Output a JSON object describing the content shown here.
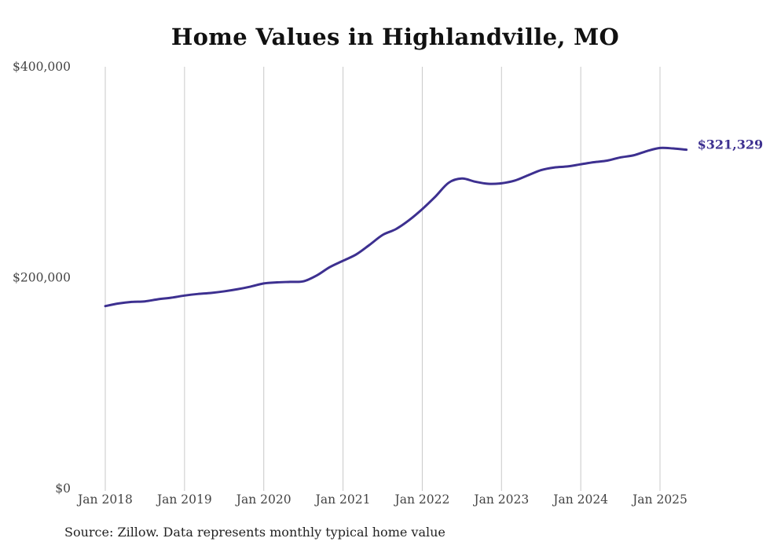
{
  "chart_data": {
    "type": "line",
    "title": "Home Values in Highlandville, MO",
    "xlabel": "",
    "ylabel": "",
    "ylim": [
      0,
      400000
    ],
    "xlim": [
      "2018-01",
      "2025-05"
    ],
    "y_ticks": [
      {
        "value": 0,
        "label": "$0"
      },
      {
        "value": 200000,
        "label": "$200,000"
      },
      {
        "value": 400000,
        "label": "$400,000"
      }
    ],
    "x_ticks": [
      {
        "date": "2018-01",
        "label": "Jan 2018"
      },
      {
        "date": "2019-01",
        "label": "Jan 2019"
      },
      {
        "date": "2020-01",
        "label": "Jan 2020"
      },
      {
        "date": "2021-01",
        "label": "Jan 2021"
      },
      {
        "date": "2022-01",
        "label": "Jan 2022"
      },
      {
        "date": "2023-01",
        "label": "Jan 2023"
      },
      {
        "date": "2024-01",
        "label": "Jan 2024"
      },
      {
        "date": "2025-01",
        "label": "Jan 2025"
      }
    ],
    "grid": {
      "vertical": true,
      "horizontal": false
    },
    "colors": {
      "line": "#3d3090",
      "grid": "#c8c8c8",
      "text": "#444444"
    },
    "end_label": "$321,329",
    "series": [
      {
        "x": [
          "2018-01",
          "2018-03",
          "2018-05",
          "2018-07",
          "2018-09",
          "2018-11",
          "2019-01",
          "2019-03",
          "2019-05",
          "2019-07",
          "2019-09",
          "2019-11",
          "2020-01",
          "2020-03",
          "2020-05",
          "2020-07",
          "2020-09",
          "2020-11",
          "2021-01",
          "2021-03",
          "2021-05",
          "2021-07",
          "2021-09",
          "2021-11",
          "2022-01",
          "2022-03",
          "2022-05",
          "2022-07",
          "2022-09",
          "2022-11",
          "2023-01",
          "2023-03",
          "2023-05",
          "2023-07",
          "2023-09",
          "2023-11",
          "2024-01",
          "2024-03",
          "2024-05",
          "2024-07",
          "2024-09",
          "2024-11",
          "2025-01",
          "2025-03",
          "2025-05"
        ],
        "y": [
          173000,
          175500,
          177000,
          177500,
          179500,
          181000,
          183000,
          184500,
          185500,
          187000,
          189000,
          191500,
          194500,
          195500,
          196000,
          196500,
          202000,
          210000,
          216000,
          222000,
          231000,
          240500,
          246000,
          254500,
          265000,
          277000,
          290000,
          294000,
          291000,
          289000,
          289500,
          292000,
          297000,
          302000,
          304500,
          305500,
          307500,
          309500,
          311000,
          314000,
          316000,
          320000,
          323000,
          322500,
          321329
        ]
      }
    ]
  },
  "source_note": "Source: Zillow. Data represents monthly typical home value"
}
